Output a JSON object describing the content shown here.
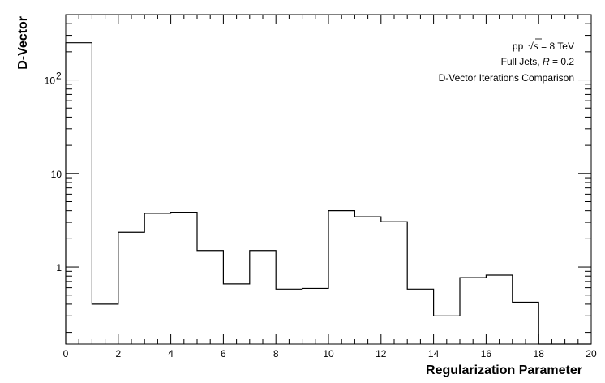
{
  "chart_data": {
    "type": "bar",
    "style": "step-histogram",
    "xlabel": "Regularization Parameter",
    "ylabel": "D-Vector",
    "xlim": [
      0,
      20
    ],
    "ylim": [
      0.15,
      500
    ],
    "yscale": "log",
    "x_ticks": [
      "0",
      "2",
      "4",
      "6",
      "8",
      "10",
      "12",
      "14",
      "16",
      "18",
      "20"
    ],
    "y_ticks": [
      {
        "value": 1,
        "label": "1"
      },
      {
        "value": 10,
        "label": "10"
      },
      {
        "value": 100,
        "label": "10",
        "exponent": "2"
      }
    ],
    "bin_edges": [
      0,
      1,
      2,
      3,
      4,
      5,
      6,
      7,
      8,
      9,
      10,
      11,
      12,
      13,
      14,
      15,
      16,
      17,
      18,
      19,
      20
    ],
    "values": [
      250,
      0.4,
      2.35,
      3.75,
      3.85,
      1.5,
      0.66,
      1.5,
      0.58,
      0.59,
      4.0,
      3.45,
      3.05,
      0.58,
      0.3,
      0.77,
      0.82,
      0.42,
      0,
      0
    ],
    "line_color": "#000000",
    "grid": false,
    "annotations": {
      "line1_prefix": "pp",
      "line1_sqrt": "√",
      "line1_s": "s",
      "line1_suffix": " = 8 TeV",
      "line2_prefix": "Full Jets, ",
      "line2_r": "R",
      "line2_suffix": " = 0.2",
      "line3": "D-Vector Iterations Comparison"
    }
  }
}
